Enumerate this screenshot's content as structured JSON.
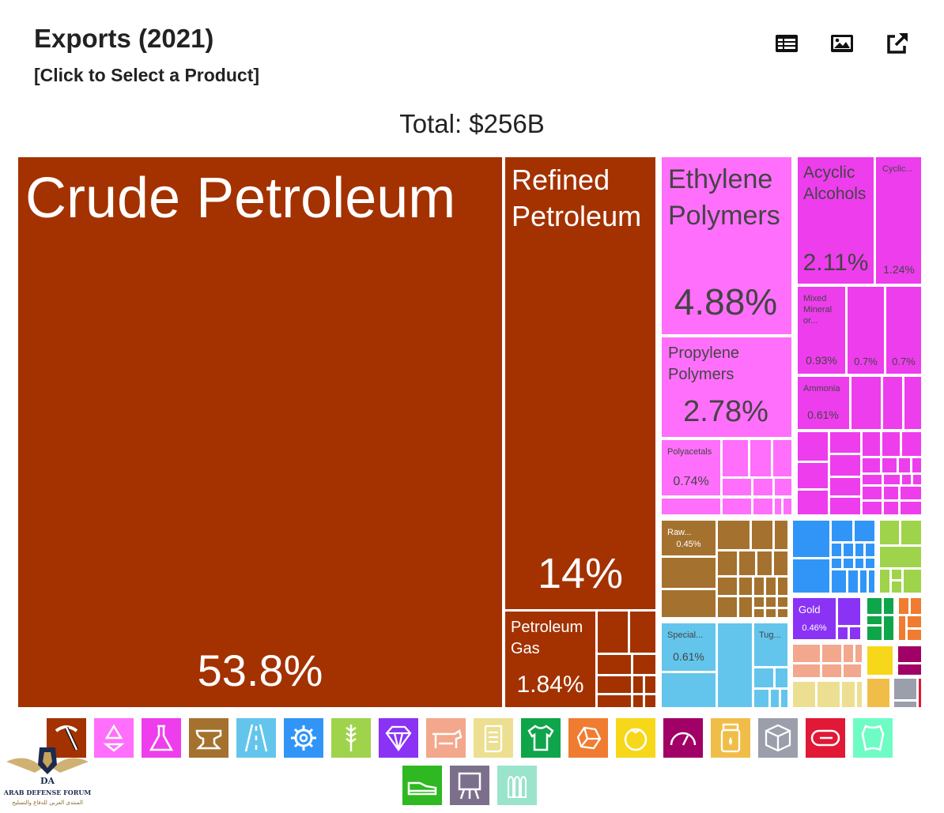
{
  "header": {
    "title": "Exports (2021)",
    "subtitle": "[Click to Select a Product]",
    "total": "Total: $256B"
  },
  "toolbar": [
    {
      "name": "table-view-button",
      "icon": "table-icon"
    },
    {
      "name": "image-download-button",
      "icon": "image-icon"
    },
    {
      "name": "open-external-button",
      "icon": "external-link-icon"
    }
  ],
  "colors": {
    "Mineral Products": "#a33200",
    "Chemical Products": "#ee3ded",
    "Plastics and Rubbers": "#ff6ffb",
    "Metals": "#a4722e",
    "Transportation": "#63c5eb",
    "Machines": "#3195f8",
    "Vegetable Products": "#9fd34b",
    "Precious Metals": "#8a33f5"
  },
  "chart_data": {
    "type": "treemap",
    "title": "Exports (2021)",
    "total": "Total: $256B",
    "unit": "share of total exports (%)",
    "items": [
      {
        "label": "Crude Petroleum",
        "value": 53.8,
        "value_label": "53.8%",
        "category": "Mineral Products"
      },
      {
        "label": "Refined Petroleum",
        "value": 14,
        "value_label": "14%",
        "category": "Mineral Products"
      },
      {
        "label": "Petroleum Gas",
        "value": 1.84,
        "value_label": "1.84%",
        "category": "Mineral Products"
      },
      {
        "label": "Ethylene Polymers",
        "value": 4.88,
        "value_label": "4.88%",
        "category": "Plastics and Rubbers"
      },
      {
        "label": "Propylene Polymers",
        "value": 2.78,
        "value_label": "2.78%",
        "category": "Plastics and Rubbers"
      },
      {
        "label": "Polyacetals",
        "value": 0.74,
        "value_label": "0.74%",
        "category": "Plastics and Rubbers"
      },
      {
        "label": "Acyclic Alcohols",
        "value": 2.11,
        "value_label": "2.11%",
        "category": "Chemical Products"
      },
      {
        "label": "Cyclic...",
        "value": 1.24,
        "value_label": "1.24%",
        "category": "Chemical Products"
      },
      {
        "label": "Mixed Mineral or...",
        "value": 0.93,
        "value_label": "0.93%",
        "category": "Chemical Products"
      },
      {
        "label": "",
        "value": 0.7,
        "value_label": "0.7%",
        "category": "Chemical Products"
      },
      {
        "label": "",
        "value": 0.7,
        "value_label": "0.7%",
        "category": "Chemical Products"
      },
      {
        "label": "Ammonia",
        "value": 0.61,
        "value_label": "0.61%",
        "category": "Chemical Products"
      },
      {
        "label": "Raw...",
        "value": 0.45,
        "value_label": "0.45%",
        "category": "Metals"
      },
      {
        "label": "Special...",
        "value": 0.61,
        "value_label": "0.61%",
        "category": "Transportation"
      },
      {
        "label": "Tug...",
        "value": null,
        "value_label": "",
        "category": "Transportation"
      },
      {
        "label": "Gold",
        "value": 0.46,
        "value_label": "0.46%",
        "category": "Precious Metals"
      }
    ]
  },
  "legend": [
    {
      "name": "Mineral Products",
      "icon": "pickaxe-icon",
      "color": "#a33200"
    },
    {
      "name": "Plastics and Rubbers",
      "icon": "recycle-icon",
      "color": "#ff6ffb"
    },
    {
      "name": "Chemical Products",
      "icon": "flask-icon",
      "color": "#ee3ded"
    },
    {
      "name": "Metals",
      "icon": "anvil-icon",
      "color": "#a4722e"
    },
    {
      "name": "Transportation",
      "icon": "road-icon",
      "color": "#63c5eb"
    },
    {
      "name": "Machines",
      "icon": "gear-icon",
      "color": "#3195f8"
    },
    {
      "name": "Vegetable Products",
      "icon": "wheat-icon",
      "color": "#9fd34b"
    },
    {
      "name": "Precious Metals",
      "icon": "diamond-icon",
      "color": "#8a33f5"
    },
    {
      "name": "Animal Products",
      "icon": "cow-icon",
      "color": "#f3a78c"
    },
    {
      "name": "Paper Goods",
      "icon": "scroll-icon",
      "color": "#ecdf91"
    },
    {
      "name": "Textiles",
      "icon": "tshirt-icon",
      "color": "#0fa54a"
    },
    {
      "name": "Stone and Glass",
      "icon": "stone-icon",
      "color": "#f07c31"
    },
    {
      "name": "Foodstuffs",
      "icon": "tomato-icon",
      "color": "#f7d719"
    },
    {
      "name": "Instruments",
      "icon": "gauge-icon",
      "color": "#a10066"
    },
    {
      "name": "Animal and Vegetable Bi-Products",
      "icon": "jar-icon",
      "color": "#f0be48"
    },
    {
      "name": "Miscellaneous",
      "icon": "box-icon",
      "color": "#9b9eab"
    },
    {
      "name": "Wood Products",
      "icon": "log-icon",
      "color": "#e11836"
    },
    {
      "name": "Animal Hides",
      "icon": "hide-icon",
      "color": "#6ffcc4"
    },
    {
      "name": "Footwear and Headwear",
      "icon": "shoe-icon",
      "color": "#2eb821"
    },
    {
      "name": "Arts and Antiques",
      "icon": "easel-icon",
      "color": "#7c6f8c"
    },
    {
      "name": "Weapons",
      "icon": "bullets-icon",
      "color": "#9ae4cc"
    }
  ],
  "watermark": {
    "logo_text": "DA",
    "line1": "ARAB DEFENSE FORUM",
    "line2": "المنتدى العربي للدفاع والتسليح"
  }
}
